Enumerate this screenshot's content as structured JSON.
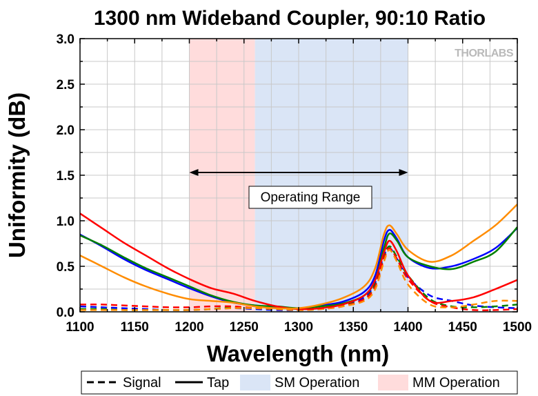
{
  "chart_data": {
    "type": "line",
    "title": "1300 nm Wideband Coupler, 90:10 Ratio",
    "xlabel": "Wavelength (nm)",
    "ylabel": "Uniformity (dB)",
    "xlim": [
      1100,
      1500
    ],
    "ylim": [
      0.0,
      3.0
    ],
    "xticks": [
      "1100",
      "1150",
      "1200",
      "1250",
      "1300",
      "1350",
      "1400",
      "1450",
      "1500"
    ],
    "yticks": [
      "0.0",
      "0.5",
      "1.0",
      "1.5",
      "2.0",
      "2.5",
      "3.0"
    ],
    "grid": true,
    "brand": "THORLABS",
    "legend": {
      "position": "bottom",
      "entries": [
        "Signal",
        "Tap",
        "SM Operation",
        "MM Operation"
      ]
    },
    "bands": [
      {
        "name": "MM Operation",
        "x0": 1200,
        "x1": 1260,
        "color": "#ffdcdc"
      },
      {
        "name": "SM Operation",
        "x0": 1260,
        "x1": 1400,
        "color": "#dae5f6"
      }
    ],
    "annotation": {
      "label": "Operating Range",
      "x0": 1200,
      "x1": 1400,
      "y": 1.53
    },
    "series": [
      {
        "group": "Tap",
        "style": "solid",
        "color": "#0000ff",
        "x": [
          1100,
          1120,
          1140,
          1160,
          1180,
          1200,
          1220,
          1240,
          1260,
          1280,
          1300,
          1320,
          1340,
          1360,
          1370,
          1378,
          1383,
          1390,
          1400,
          1420,
          1440,
          1460,
          1480,
          1500
        ],
        "y": [
          0.85,
          0.72,
          0.58,
          0.46,
          0.36,
          0.26,
          0.17,
          0.1,
          0.07,
          0.05,
          0.04,
          0.07,
          0.11,
          0.22,
          0.4,
          0.78,
          0.9,
          0.8,
          0.6,
          0.48,
          0.5,
          0.58,
          0.7,
          0.92
        ]
      },
      {
        "group": "Tap",
        "style": "solid",
        "color": "#008000",
        "x": [
          1100,
          1120,
          1140,
          1160,
          1180,
          1200,
          1220,
          1240,
          1260,
          1280,
          1300,
          1320,
          1340,
          1360,
          1370,
          1378,
          1383,
          1390,
          1400,
          1420,
          1440,
          1460,
          1480,
          1500
        ],
        "y": [
          0.84,
          0.73,
          0.6,
          0.48,
          0.38,
          0.28,
          0.18,
          0.11,
          0.07,
          0.06,
          0.04,
          0.06,
          0.09,
          0.18,
          0.35,
          0.7,
          0.86,
          0.78,
          0.6,
          0.5,
          0.47,
          0.55,
          0.66,
          0.93
        ]
      },
      {
        "group": "Tap",
        "style": "solid",
        "color": "#ff0000",
        "x": [
          1100,
          1120,
          1140,
          1160,
          1180,
          1200,
          1220,
          1240,
          1260,
          1280,
          1300,
          1320,
          1340,
          1360,
          1370,
          1378,
          1383,
          1390,
          1400,
          1420,
          1440,
          1460,
          1480,
          1500
        ],
        "y": [
          1.08,
          0.92,
          0.76,
          0.62,
          0.48,
          0.36,
          0.26,
          0.2,
          0.12,
          0.06,
          0.03,
          0.04,
          0.08,
          0.18,
          0.35,
          0.65,
          0.78,
          0.66,
          0.4,
          0.12,
          0.12,
          0.16,
          0.25,
          0.35
        ]
      },
      {
        "group": "Tap",
        "style": "solid",
        "color": "#ff8c00",
        "x": [
          1100,
          1120,
          1140,
          1160,
          1180,
          1200,
          1220,
          1240,
          1260,
          1280,
          1300,
          1320,
          1340,
          1360,
          1370,
          1378,
          1383,
          1390,
          1400,
          1420,
          1440,
          1460,
          1480,
          1500
        ],
        "y": [
          0.62,
          0.5,
          0.38,
          0.28,
          0.2,
          0.14,
          0.12,
          0.1,
          0.06,
          0.04,
          0.04,
          0.08,
          0.15,
          0.28,
          0.48,
          0.85,
          0.95,
          0.85,
          0.68,
          0.55,
          0.62,
          0.78,
          0.95,
          1.18
        ]
      },
      {
        "group": "Signal",
        "style": "dashed",
        "color": "#0000ff",
        "x": [
          1100,
          1120,
          1140,
          1160,
          1180,
          1200,
          1220,
          1240,
          1260,
          1280,
          1300,
          1320,
          1340,
          1360,
          1370,
          1378,
          1383,
          1390,
          1400,
          1420,
          1440,
          1460,
          1480,
          1500
        ],
        "y": [
          0.06,
          0.05,
          0.04,
          0.03,
          0.02,
          0.02,
          0.03,
          0.04,
          0.03,
          0.02,
          0.02,
          0.04,
          0.08,
          0.16,
          0.32,
          0.62,
          0.7,
          0.58,
          0.38,
          0.18,
          0.12,
          0.07,
          0.05,
          0.04
        ]
      },
      {
        "group": "Signal",
        "style": "dashed",
        "color": "#008000",
        "x": [
          1100,
          1120,
          1140,
          1160,
          1180,
          1200,
          1220,
          1240,
          1260,
          1280,
          1300,
          1320,
          1340,
          1360,
          1370,
          1378,
          1383,
          1390,
          1400,
          1420,
          1440,
          1460,
          1480,
          1500
        ],
        "y": [
          0.03,
          0.03,
          0.02,
          0.02,
          0.02,
          0.02,
          0.03,
          0.05,
          0.04,
          0.03,
          0.02,
          0.03,
          0.07,
          0.14,
          0.3,
          0.6,
          0.72,
          0.6,
          0.4,
          0.14,
          0.06,
          0.05,
          0.06,
          0.08
        ]
      },
      {
        "group": "Signal",
        "style": "dashed",
        "color": "#ff0000",
        "x": [
          1100,
          1120,
          1140,
          1160,
          1180,
          1200,
          1220,
          1240,
          1260,
          1280,
          1300,
          1320,
          1340,
          1360,
          1370,
          1378,
          1383,
          1390,
          1400,
          1420,
          1440,
          1460,
          1480,
          1500
        ],
        "y": [
          0.08,
          0.08,
          0.07,
          0.06,
          0.05,
          0.05,
          0.06,
          0.06,
          0.04,
          0.03,
          0.02,
          0.03,
          0.06,
          0.14,
          0.28,
          0.58,
          0.7,
          0.58,
          0.36,
          0.12,
          0.05,
          0.02,
          0.02,
          0.03
        ]
      },
      {
        "group": "Signal",
        "style": "dashed",
        "color": "#ff8c00",
        "x": [
          1100,
          1120,
          1140,
          1160,
          1180,
          1200,
          1220,
          1240,
          1260,
          1280,
          1300,
          1320,
          1340,
          1360,
          1370,
          1378,
          1383,
          1390,
          1400,
          1420,
          1440,
          1460,
          1480,
          1500
        ],
        "y": [
          0.02,
          0.02,
          0.02,
          0.02,
          0.02,
          0.02,
          0.03,
          0.04,
          0.04,
          0.03,
          0.02,
          0.03,
          0.06,
          0.12,
          0.25,
          0.55,
          0.68,
          0.55,
          0.3,
          0.08,
          0.05,
          0.08,
          0.12,
          0.12
        ]
      }
    ]
  }
}
